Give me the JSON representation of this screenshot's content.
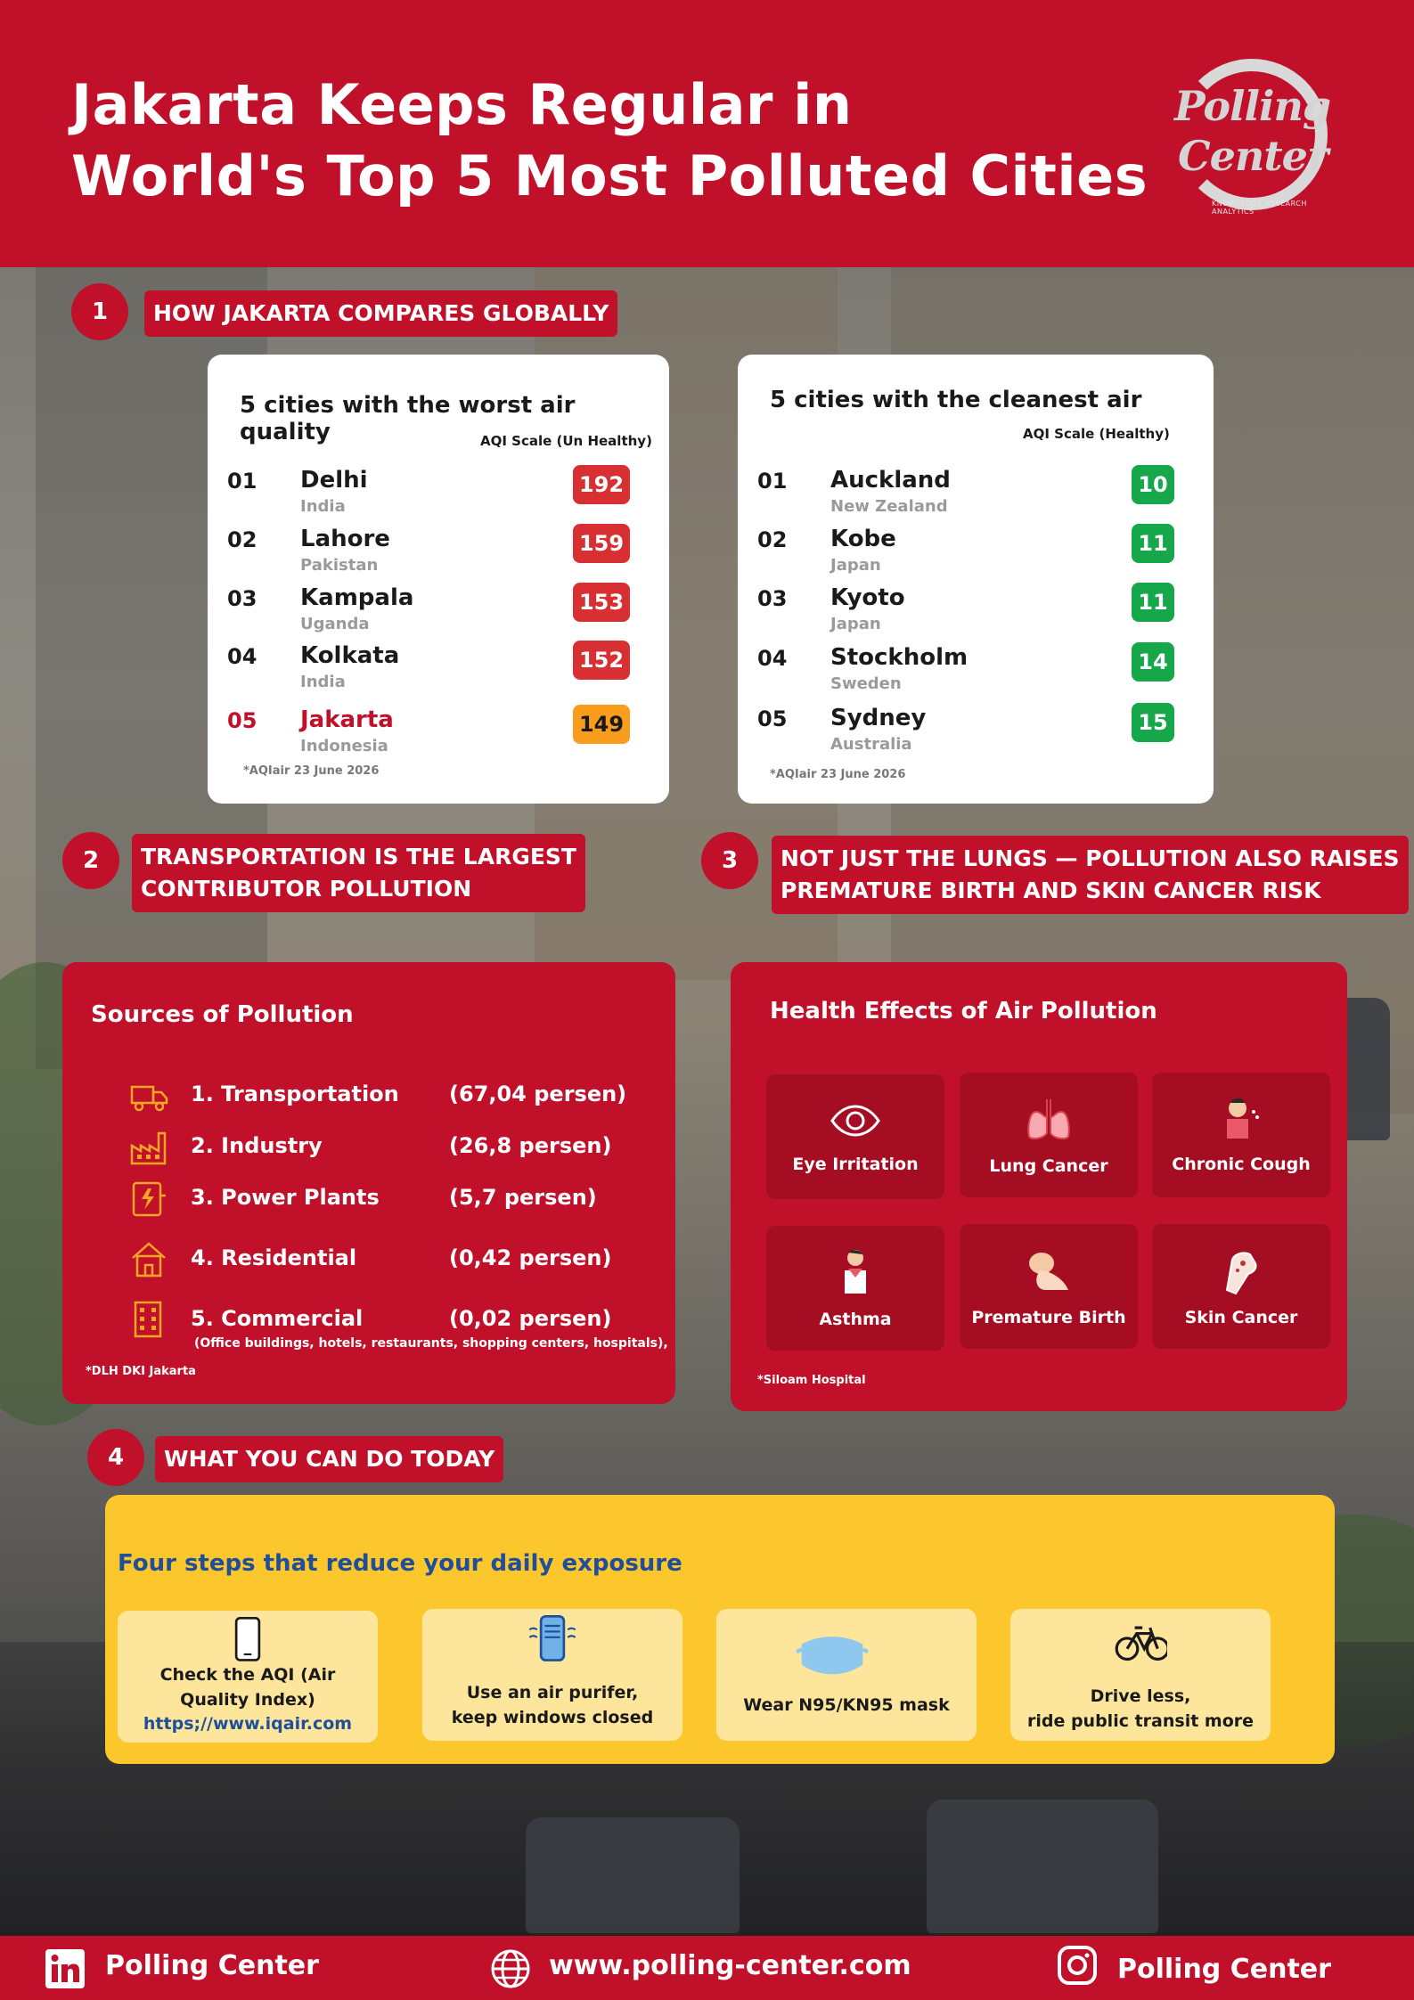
{
  "header": {
    "title_line1": "Jakarta Keeps Regular in",
    "title_line2": "World's Top 5 Most Polluted Cities",
    "logo_line1": "Polling",
    "logo_line2": "Center",
    "logo_tagline": "KNOWLEDGE RESEARCH ANALYTICS"
  },
  "colors": {
    "brand_red": "#c0102a",
    "aqi_unhealthy": "#d72f32",
    "aqi_highlight": "#f99d1c",
    "aqi_healthy": "#15a74a",
    "yellow_panel": "#fcc62d",
    "link_blue": "#1f4e9a"
  },
  "section1": {
    "number": "1",
    "label": "HOW JAKARTA COMPARES GLOBALLY",
    "worst": {
      "title": "5 cities with the worst air quality",
      "scale_label": "AQI Scale (Un Healthy)",
      "source": "*AQIair 23 June 2026",
      "rows": [
        {
          "rank": "01",
          "city": "Delhi",
          "country": "India",
          "aqi": "192"
        },
        {
          "rank": "02",
          "city": " Lahore",
          "country": "Pakistan",
          "aqi": "159"
        },
        {
          "rank": "03",
          "city": "Kampala",
          "country": "Uganda",
          "aqi": "153"
        },
        {
          "rank": "04",
          "city": "Kolkata",
          "country": "India",
          "aqi": "152"
        },
        {
          "rank": "05",
          "city": "Jakarta",
          "country": "Indonesia",
          "aqi": "149"
        }
      ]
    },
    "cleanest": {
      "title": "5 cities with the cleanest air",
      "scale_label": "AQI Scale (Healthy)",
      "source": "*AQIair 23 June 2026",
      "rows": [
        {
          "rank": "01",
          "city": "Auckland",
          "country": "New Zealand",
          "aqi": "10"
        },
        {
          "rank": "02",
          "city": "Kobe",
          "country": "Japan",
          "aqi": "11"
        },
        {
          "rank": "03",
          "city": "Kyoto",
          "country": "Japan",
          "aqi": "11"
        },
        {
          "rank": "04",
          "city": "Stockholm",
          "country": "Sweden",
          "aqi": "14"
        },
        {
          "rank": "05",
          "city": "Sydney",
          "country": "Australia",
          "aqi": "15"
        }
      ]
    }
  },
  "section2": {
    "number": "2",
    "label_line1": "TRANSPORTATION IS THE LARGEST",
    "label_line2": "CONTRIBUTOR POLLUTION",
    "panel_title": "Sources of Pollution",
    "items": [
      {
        "label": "1. Transportation",
        "percent": "(67,04 persen)",
        "icon": "truck-icon"
      },
      {
        "label": "2. Industry",
        "percent": "(26,8 persen)",
        "icon": "factory-icon"
      },
      {
        "label": "3. Power Plants",
        "percent": "(5,7 persen)",
        "icon": "power-plant-icon"
      },
      {
        "label": "4. Residential",
        "percent": "(0,42 persen)",
        "icon": "house-icon"
      },
      {
        "label": "5. Commercial",
        "percent": "(0,02 persen)",
        "icon": "building-icon"
      }
    ],
    "commercial_note": "(Office buildings, hotels, restaurants, shopping centers, hospitals),",
    "source": "*DLH DKI Jakarta"
  },
  "section3": {
    "number": "3",
    "label_line1": "NOT JUST THE LUNGS — POLLUTION ALSO RAISES",
    "label_line2": "PREMATURE BIRTH AND SKIN CANCER RISK",
    "panel_title": "Health Effects of Air Pollution",
    "effects": [
      {
        "label": "Eye Irritation",
        "icon": "eye-icon"
      },
      {
        "label": "Lung Cancer",
        "icon": "lungs-icon"
      },
      {
        "label": "Chronic Cough",
        "icon": "cough-icon"
      },
      {
        "label": "Asthma",
        "icon": "asthma-icon"
      },
      {
        "label": "Premature Birth",
        "icon": "baby-icon"
      },
      {
        "label": "Skin Cancer",
        "icon": "skin-icon"
      }
    ],
    "source": "*Siloam Hospital"
  },
  "section4": {
    "number": "4",
    "label": "WHAT YOU CAN DO TODAY",
    "panel_title": "Four steps that reduce your daily exposure",
    "steps": [
      {
        "line1": "Check the AQI (Air",
        "line2": "Quality Index)",
        "link": "https;//www.iqair.com",
        "icon": "phone-icon"
      },
      {
        "line1": "Use an air purifer,",
        "line2": "keep windows closed",
        "icon": "air-purifier-icon"
      },
      {
        "line1": "Wear N95/KN95 mask",
        "icon": "mask-icon"
      },
      {
        "line1": "Drive less,",
        "line2": "ride public transit more",
        "icon": "bicycle-icon"
      }
    ]
  },
  "footer": {
    "linkedin": "Polling Center",
    "website": "www.polling-center.com",
    "instagram": "Polling Center"
  }
}
